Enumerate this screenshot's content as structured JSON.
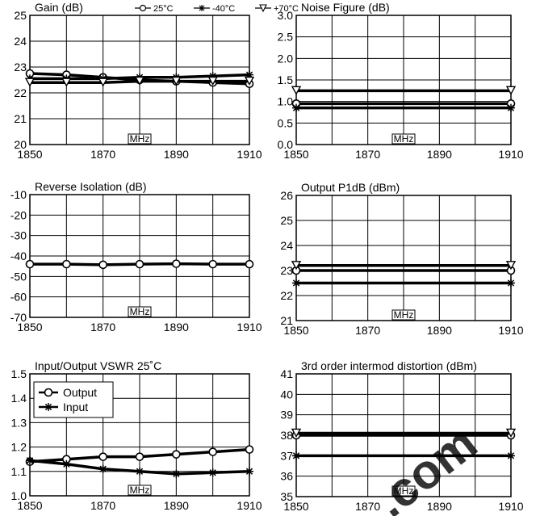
{
  "watermark": ".com",
  "watermark_color": "#f1c2ae",
  "chart_data": [
    {
      "id": "gain",
      "type": "line",
      "title": "Gain (dB)",
      "xlabel": "MHz",
      "ylabel": "",
      "xlim": [
        1850,
        1910
      ],
      "ylim": [
        20,
        25
      ],
      "x_ticks": [
        1850,
        1870,
        1890,
        1910
      ],
      "x_tick_labels": [
        "1850",
        "1870",
        "1890",
        "1910"
      ],
      "y_ticks": [
        20,
        21,
        22,
        23,
        24,
        25
      ],
      "y_tick_labels": [
        "20",
        "21",
        "22",
        "23",
        "24",
        "25"
      ],
      "legend": {
        "placement": "top",
        "entries": [
          "25°C",
          "-40°C",
          "+70°C"
        ]
      },
      "series": [
        {
          "name": "25°C",
          "marker": "circle",
          "x": [
            1850,
            1860,
            1870,
            1880,
            1890,
            1900,
            1910
          ],
          "values": [
            22.75,
            22.7,
            22.6,
            22.5,
            22.45,
            22.4,
            22.35
          ]
        },
        {
          "name": "-40°C",
          "marker": "star",
          "x": [
            1850,
            1860,
            1870,
            1880,
            1890,
            1900,
            1910
          ],
          "values": [
            22.55,
            22.55,
            22.55,
            22.6,
            22.6,
            22.65,
            22.7
          ]
        },
        {
          "name": "+70°C",
          "marker": "triangle",
          "x": [
            1850,
            1860,
            1870,
            1880,
            1890,
            1900,
            1910
          ],
          "values": [
            22.4,
            22.4,
            22.4,
            22.45,
            22.45,
            22.45,
            22.45
          ]
        }
      ]
    },
    {
      "id": "noise-figure",
      "type": "line",
      "title": "Noise Figure (dB)",
      "xlabel": "MHz",
      "ylabel": "",
      "xlim": [
        1850,
        1910
      ],
      "ylim": [
        0,
        3
      ],
      "x_ticks": [
        1850,
        1870,
        1890,
        1910
      ],
      "x_tick_labels": [
        "1850",
        "1870",
        "1890",
        "1910"
      ],
      "y_ticks": [
        0,
        0.5,
        1,
        1.5,
        2,
        2.5,
        3
      ],
      "y_tick_labels": [
        "0.0",
        "0.5",
        "1.0",
        "1.5",
        "2.0",
        "2.5",
        "3.0"
      ],
      "series": [
        {
          "name": "25°C",
          "marker": "circle",
          "x": [
            1850,
            1910
          ],
          "values": [
            0.95,
            0.95
          ]
        },
        {
          "name": "-40°C",
          "marker": "star",
          "x": [
            1850,
            1910
          ],
          "values": [
            0.85,
            0.85
          ]
        },
        {
          "name": "+70°C",
          "marker": "triangle",
          "x": [
            1850,
            1910
          ],
          "values": [
            1.25,
            1.25
          ]
        }
      ]
    },
    {
      "id": "reverse-isolation",
      "type": "line",
      "title": "Reverse Isolation (dB)",
      "xlabel": "MHz",
      "ylabel": "",
      "xlim": [
        1850,
        1910
      ],
      "ylim": [
        -70,
        -10
      ],
      "x_ticks": [
        1850,
        1870,
        1890,
        1910
      ],
      "x_tick_labels": [
        "1850",
        "1870",
        "1890",
        "1910"
      ],
      "y_ticks": [
        -70,
        -60,
        -50,
        -40,
        -30,
        -20,
        -10
      ],
      "y_tick_labels": [
        "-70",
        "-60",
        "-50",
        "-40",
        "-30",
        "-20",
        "-10"
      ],
      "series": [
        {
          "name": "25°C",
          "marker": "circle",
          "x": [
            1850,
            1860,
            1870,
            1880,
            1890,
            1900,
            1910
          ],
          "values": [
            -44,
            -44,
            -44.3,
            -44,
            -43.8,
            -44,
            -44
          ]
        }
      ]
    },
    {
      "id": "output-p1db",
      "type": "line",
      "title": "Output P1dB (dBm)",
      "xlabel": "MHz",
      "ylabel": "",
      "xlim": [
        1850,
        1910
      ],
      "ylim": [
        21,
        26
      ],
      "x_ticks": [
        1850,
        1870,
        1890,
        1910
      ],
      "x_tick_labels": [
        "1850",
        "1870",
        "1890",
        "1910"
      ],
      "y_ticks": [
        21,
        22,
        23,
        24,
        25,
        26
      ],
      "y_tick_labels": [
        "21",
        "22",
        "23",
        "24",
        "25",
        "26"
      ],
      "series": [
        {
          "name": "25°C",
          "marker": "circle",
          "x": [
            1850,
            1910
          ],
          "values": [
            23.0,
            23.0
          ]
        },
        {
          "name": "-40°C",
          "marker": "star",
          "x": [
            1850,
            1910
          ],
          "values": [
            22.5,
            22.5
          ]
        },
        {
          "name": "+70°C",
          "marker": "triangle",
          "x": [
            1850,
            1910
          ],
          "values": [
            23.2,
            23.2
          ]
        }
      ]
    },
    {
      "id": "vswr",
      "type": "line",
      "title": "Input/Output VSWR 25˚C",
      "xlabel": "MHz",
      "ylabel": "",
      "xlim": [
        1850,
        1910
      ],
      "ylim": [
        1.0,
        1.5
      ],
      "x_ticks": [
        1850,
        1870,
        1890,
        1910
      ],
      "x_tick_labels": [
        "1850",
        "1870",
        "1890",
        "1910"
      ],
      "y_ticks": [
        1.0,
        1.1,
        1.2,
        1.3,
        1.4,
        1.5
      ],
      "y_tick_labels": [
        "1.0",
        "1.1",
        "1.2",
        "1.3",
        "1.4",
        "1.5"
      ],
      "legend": {
        "placement": "top-left",
        "entries": [
          "Output",
          "Input"
        ]
      },
      "series": [
        {
          "name": "Output",
          "marker": "circle",
          "x": [
            1850,
            1860,
            1870,
            1880,
            1890,
            1900,
            1910
          ],
          "values": [
            1.14,
            1.15,
            1.16,
            1.16,
            1.17,
            1.18,
            1.19
          ]
        },
        {
          "name": "Input",
          "marker": "star",
          "x": [
            1850,
            1860,
            1870,
            1880,
            1890,
            1900,
            1910
          ],
          "values": [
            1.145,
            1.13,
            1.11,
            1.1,
            1.09,
            1.095,
            1.1
          ]
        }
      ]
    },
    {
      "id": "imd3",
      "type": "line",
      "title": "3rd order intermod distortion (dBm)",
      "xlabel": "MHz",
      "ylabel": "",
      "xlim": [
        1850,
        1910
      ],
      "ylim": [
        35,
        41
      ],
      "x_ticks": [
        1850,
        1870,
        1890,
        1910
      ],
      "x_tick_labels": [
        "1850",
        "1870",
        "1890",
        "1910"
      ],
      "y_ticks": [
        35,
        36,
        37,
        38,
        39,
        40,
        41
      ],
      "y_tick_labels": [
        "35",
        "36",
        "37",
        "38",
        "39",
        "40",
        "41"
      ],
      "series": [
        {
          "name": "25°C",
          "marker": "circle",
          "x": [
            1850,
            1910
          ],
          "values": [
            38.0,
            38.0
          ]
        },
        {
          "name": "-40°C",
          "marker": "star",
          "x": [
            1850,
            1910
          ],
          "values": [
            37.0,
            37.0
          ]
        },
        {
          "name": "+70°C",
          "marker": "triangle",
          "x": [
            1850,
            1910
          ],
          "values": [
            38.1,
            38.1
          ]
        }
      ]
    }
  ]
}
